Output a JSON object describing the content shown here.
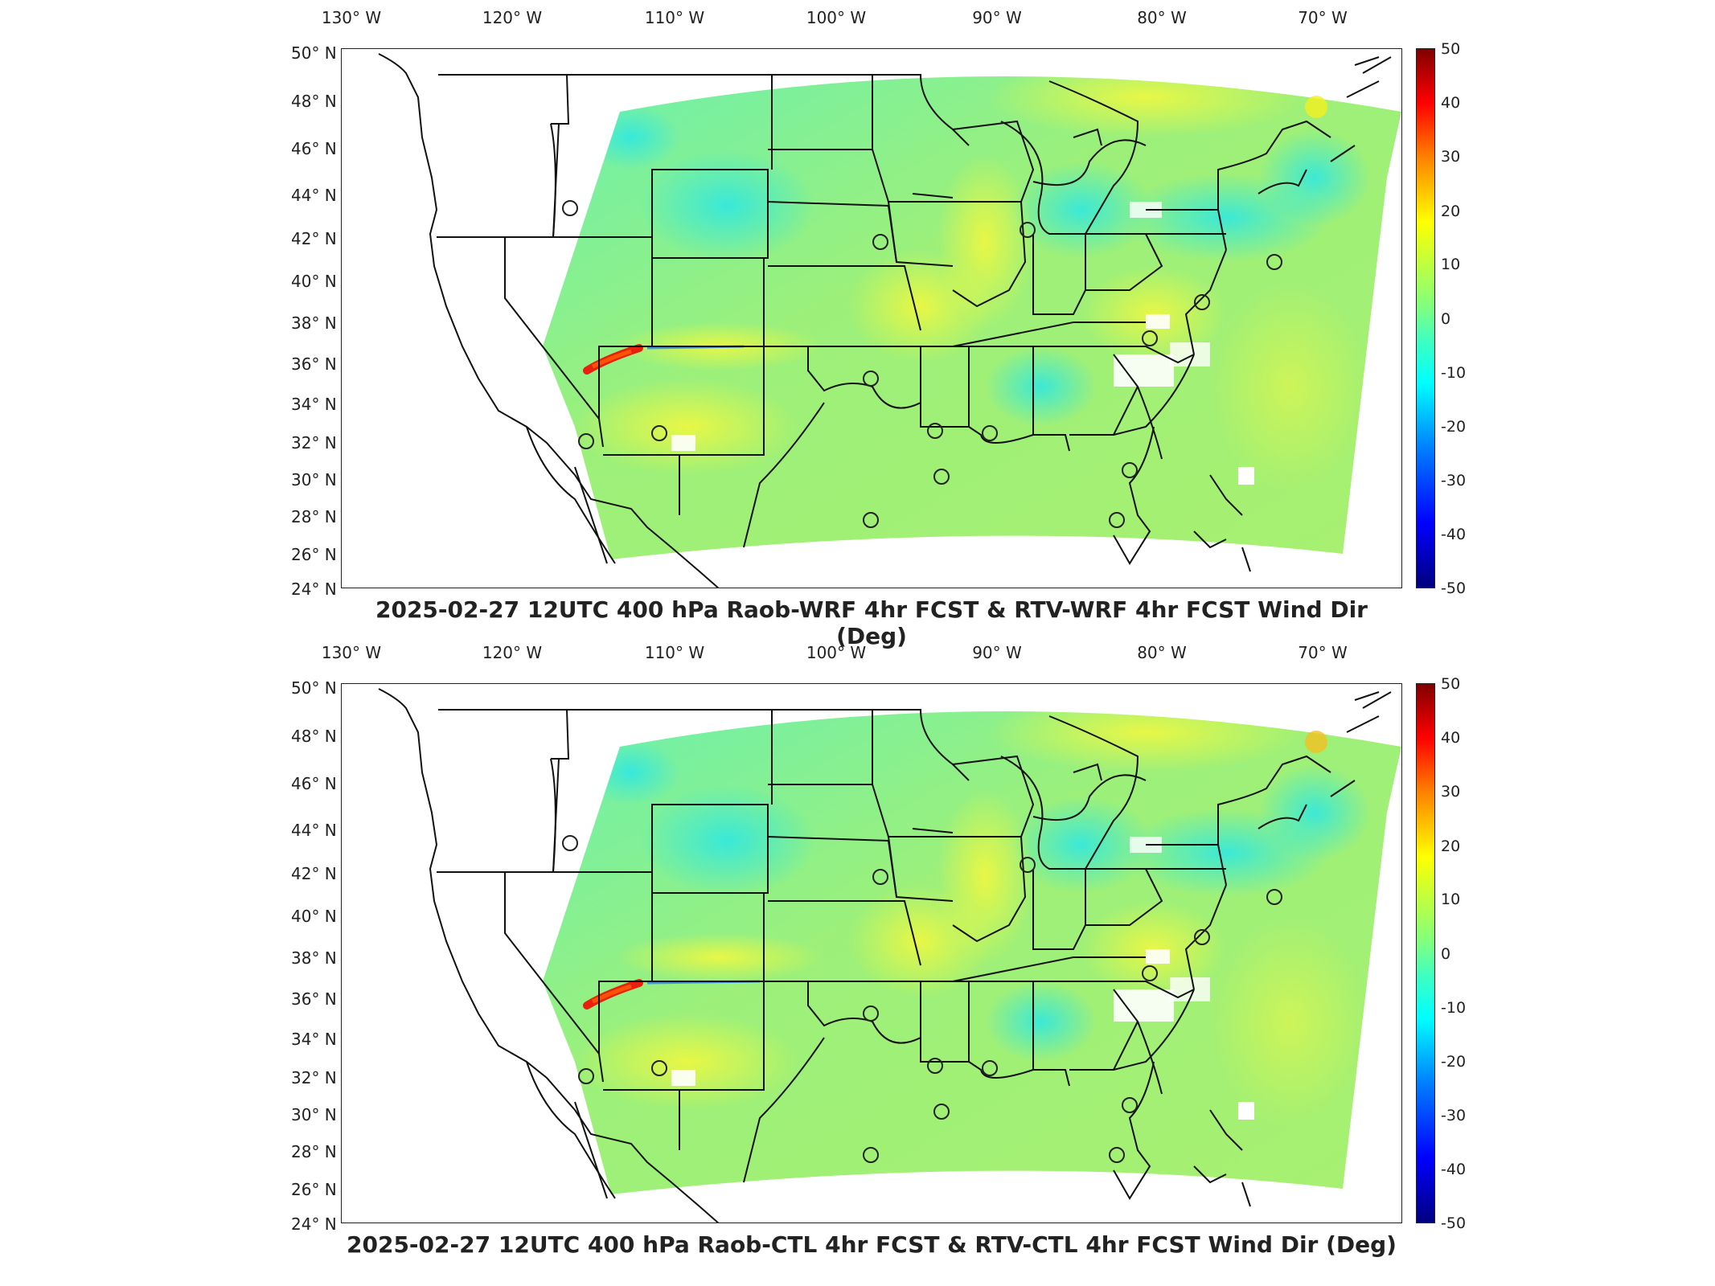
{
  "panels": [
    {
      "title": "2025-02-27 12UTC 400 hPa Raob-WRF 4hr FCST & RTV-WRF 4hr FCST Wind Dir (Deg)",
      "colorbar": {
        "min": -50,
        "max": 50,
        "ticks": [
          "50",
          "40",
          "30",
          "20",
          "10",
          "0",
          "-10",
          "-20",
          "-30",
          "-40",
          "-50"
        ]
      }
    },
    {
      "title": "2025-02-27 12UTC 400 hPa Raob-CTL 4hr FCST & RTV-CTL 4hr FCST Wind Dir (Deg)",
      "colorbar": {
        "min": -50,
        "max": 50,
        "ticks": [
          "50",
          "40",
          "30",
          "20",
          "10",
          "0",
          "-10",
          "-20",
          "-30",
          "-40",
          "-50"
        ]
      }
    }
  ],
  "axes": {
    "lon_ticks": [
      "130° W",
      "120° W",
      "110° W",
      "100° W",
      "90° W",
      "80° W",
      "70° W"
    ],
    "lat_ticks": [
      "50° N",
      "48° N",
      "46° N",
      "44° N",
      "42° N",
      "40° N",
      "38° N",
      "36° N",
      "34° N",
      "32° N",
      "30° N",
      "28° N",
      "26° N",
      "24° N"
    ]
  },
  "colors": {
    "background_field": "#9cf07a",
    "cyan_region": "#40f0d0",
    "yellow_region": "#e8f850",
    "red_streak": "#e02010",
    "blue_streak": "#2050ff",
    "boundary_line": "#111111"
  }
}
